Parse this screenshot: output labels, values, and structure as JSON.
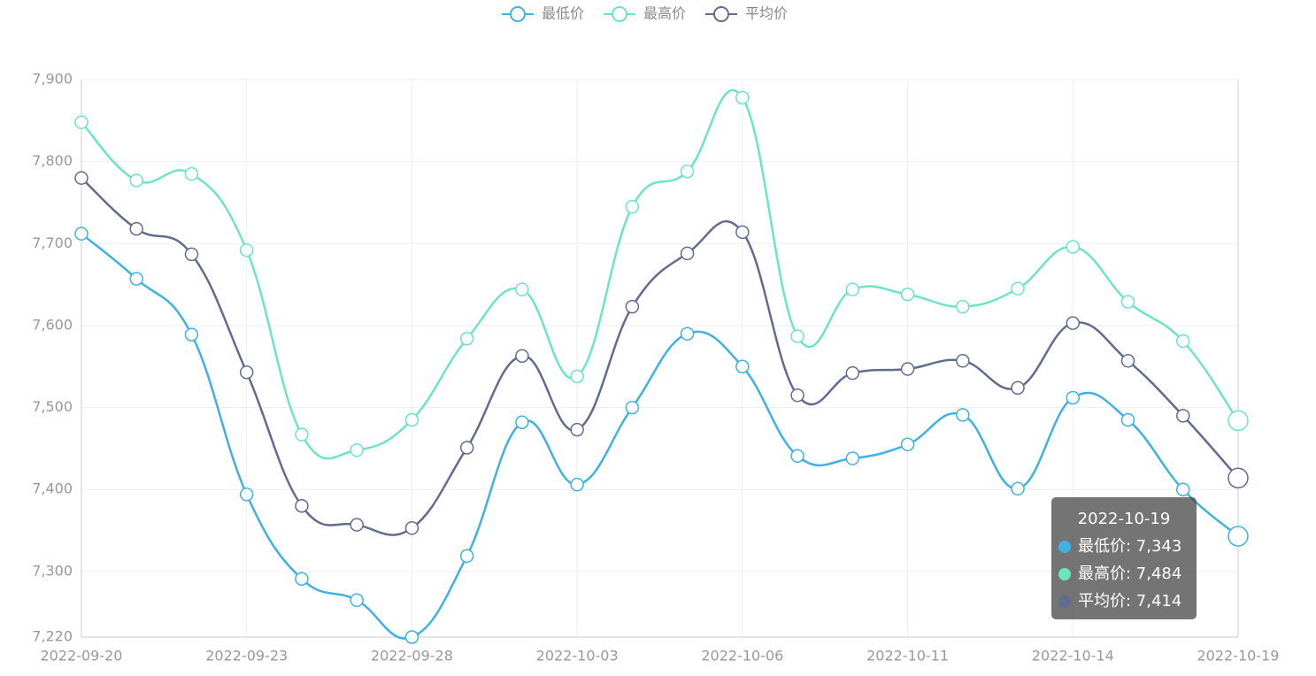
{
  "chart_data": {
    "type": "line",
    "smooth": true,
    "categories": [
      "2022-09-20",
      null,
      null,
      "2022-09-23",
      null,
      null,
      "2022-09-28",
      null,
      null,
      "2022-10-03",
      null,
      null,
      "2022-10-06",
      null,
      null,
      "2022-10-11",
      null,
      null,
      "2022-10-14",
      null,
      null,
      "2022-10-19"
    ],
    "series": [
      {
        "name": "最低价",
        "color": "#3fb1e3",
        "values": [
          7712,
          7657,
          7589,
          7394,
          7291,
          7265,
          7220,
          7319,
          7482,
          7406,
          7500,
          7590,
          7550,
          7441,
          7438,
          7455,
          7491,
          7401,
          7512,
          7485,
          7400,
          7343
        ]
      },
      {
        "name": "最高价",
        "color": "#6be6c1",
        "values": [
          7848,
          7777,
          7785,
          7692,
          7467,
          7448,
          7485,
          7584,
          7644,
          7538,
          7745,
          7788,
          7878,
          7587,
          7644,
          7638,
          7623,
          7645,
          7696,
          7629,
          7581,
          7484
        ]
      },
      {
        "name": "平均价",
        "color": "#626c91",
        "values": [
          7780,
          7718,
          7687,
          7543,
          7380,
          7357,
          7353,
          7451,
          7563,
          7473,
          7623,
          7688,
          7714,
          7515,
          7542,
          7547,
          7557,
          7524,
          7603,
          7557,
          7490,
          7414
        ]
      }
    ],
    "ylim": [
      7220,
      7900
    ],
    "yticks": [
      {
        "value": 7220,
        "label": "7,220"
      },
      {
        "value": 7300,
        "label": "7,300"
      },
      {
        "value": 7400,
        "label": "7,400"
      },
      {
        "value": 7500,
        "label": "7,500"
      },
      {
        "value": 7600,
        "label": "7,600"
      },
      {
        "value": 7700,
        "label": "7,700"
      },
      {
        "value": 7800,
        "label": "7,800"
      },
      {
        "value": 7900,
        "label": "7,900"
      }
    ],
    "grid": true,
    "legend": "top",
    "tooltip": {
      "lines": [
        "最低价: 7,343",
        "最高价: 7,484",
        "平均价: 7,414"
      ]
    }
  }
}
